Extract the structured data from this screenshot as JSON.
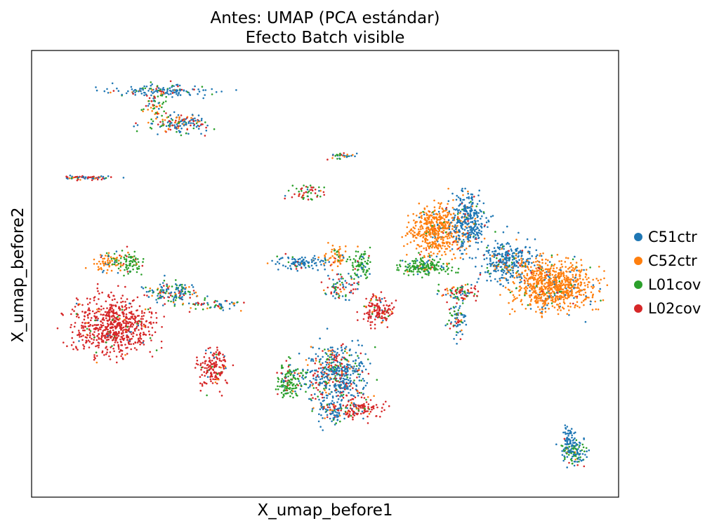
{
  "chart_data": {
    "type": "scatter",
    "title": "Antes: UMAP (PCA estándar)\nEfecto Batch visible",
    "title_lines": [
      "Antes: UMAP (PCA estándar)",
      "Efecto Batch visible"
    ],
    "xlabel": "X_umap_before1",
    "ylabel": "X_umap_before2",
    "xlim": [
      0,
      100
    ],
    "ylim": [
      0,
      100
    ],
    "grid": false,
    "ticks": false,
    "legend_position": "right",
    "series": [
      {
        "name": "C51ctr",
        "color": "#1f77b4"
      },
      {
        "name": "C52ctr",
        "color": "#ff7f0e"
      },
      {
        "name": "L01cov",
        "color": "#2ca02c"
      },
      {
        "name": "L02cov",
        "color": "#d62728"
      }
    ],
    "clusters": [
      {
        "x": 22,
        "y": 91,
        "sx": 7,
        "sy": 1.2,
        "n": 140,
        "mix": [
          0.7,
          0.1,
          0.1,
          0.1
        ]
      },
      {
        "x": 25,
        "y": 84,
        "sx": 4,
        "sy": 1.5,
        "n": 90,
        "mix": [
          0.45,
          0.2,
          0.1,
          0.25
        ]
      },
      {
        "x": 21,
        "y": 88,
        "sx": 1.5,
        "sy": 3,
        "n": 60,
        "mix": [
          0.1,
          0.35,
          0.35,
          0.2
        ]
      },
      {
        "x": 25,
        "y": 83,
        "sx": 5,
        "sy": 1.5,
        "n": 60,
        "mix": [
          0.4,
          0.1,
          0.25,
          0.25
        ]
      },
      {
        "x": 9.5,
        "y": 71.5,
        "sx": 4,
        "sy": 0.4,
        "n": 60,
        "mix": [
          0.3,
          0.1,
          0.15,
          0.45
        ]
      },
      {
        "x": 53,
        "y": 76.5,
        "sx": 2.5,
        "sy": 0.7,
        "n": 30,
        "mix": [
          0.4,
          0.15,
          0.3,
          0.15
        ]
      },
      {
        "x": 47,
        "y": 68,
        "sx": 2.5,
        "sy": 2,
        "n": 55,
        "mix": [
          0.1,
          0.1,
          0.4,
          0.4
        ]
      },
      {
        "x": 13,
        "y": 53,
        "sx": 2,
        "sy": 2,
        "n": 70,
        "mix": [
          0.1,
          0.75,
          0.1,
          0.05
        ]
      },
      {
        "x": 16.5,
        "y": 52.5,
        "sx": 2,
        "sy": 2.2,
        "n": 80,
        "mix": [
          0.05,
          0.1,
          0.8,
          0.05
        ]
      },
      {
        "x": 24,
        "y": 46,
        "sx": 4,
        "sy": 2,
        "n": 140,
        "mix": [
          0.5,
          0.15,
          0.25,
          0.1
        ]
      },
      {
        "x": 31,
        "y": 43,
        "sx": 4,
        "sy": 1.3,
        "n": 60,
        "mix": [
          0.3,
          0.1,
          0.3,
          0.3
        ]
      },
      {
        "x": 14,
        "y": 38.5,
        "sx": 5.5,
        "sy": 5.5,
        "n": 700,
        "mix": [
          0.02,
          0.02,
          0.02,
          0.94
        ]
      },
      {
        "x": 31,
        "y": 29,
        "sx": 2.2,
        "sy": 4,
        "n": 160,
        "mix": [
          0.05,
          0.03,
          0.07,
          0.85
        ]
      },
      {
        "x": 46,
        "y": 52.5,
        "sx": 3.5,
        "sy": 1.3,
        "n": 110,
        "mix": [
          0.9,
          0.03,
          0.04,
          0.03
        ]
      },
      {
        "x": 52,
        "y": 54,
        "sx": 1.5,
        "sy": 2,
        "n": 60,
        "mix": [
          0.1,
          0.7,
          0.1,
          0.1
        ]
      },
      {
        "x": 56,
        "y": 52.5,
        "sx": 1.5,
        "sy": 3,
        "n": 90,
        "mix": [
          0.15,
          0.05,
          0.75,
          0.05
        ]
      },
      {
        "x": 53,
        "y": 47,
        "sx": 2.5,
        "sy": 2.5,
        "n": 80,
        "mix": [
          0.35,
          0.1,
          0.2,
          0.35
        ]
      },
      {
        "x": 59,
        "y": 42,
        "sx": 2.2,
        "sy": 3,
        "n": 140,
        "mix": [
          0.05,
          0.03,
          0.07,
          0.85
        ]
      },
      {
        "x": 52,
        "y": 27.5,
        "sx": 4.5,
        "sy": 5.5,
        "n": 520,
        "mix": [
          0.6,
          0.08,
          0.12,
          0.2
        ]
      },
      {
        "x": 44,
        "y": 26,
        "sx": 2,
        "sy": 3.5,
        "n": 140,
        "mix": [
          0.1,
          0.04,
          0.76,
          0.1
        ]
      },
      {
        "x": 56,
        "y": 20,
        "sx": 3.5,
        "sy": 2,
        "n": 110,
        "mix": [
          0.05,
          0.03,
          0.07,
          0.85
        ]
      },
      {
        "x": 51,
        "y": 19,
        "sx": 2.5,
        "sy": 2.5,
        "n": 90,
        "mix": [
          0.7,
          0.05,
          0.1,
          0.15
        ]
      },
      {
        "x": 69,
        "y": 60,
        "sx": 4,
        "sy": 4.5,
        "n": 520,
        "mix": [
          0.04,
          0.9,
          0.03,
          0.03
        ]
      },
      {
        "x": 74.5,
        "y": 62,
        "sx": 2.5,
        "sy": 5.5,
        "n": 320,
        "mix": [
          0.9,
          0.05,
          0.03,
          0.02
        ]
      },
      {
        "x": 67,
        "y": 51.5,
        "sx": 4,
        "sy": 1.5,
        "n": 170,
        "mix": [
          0.1,
          0.05,
          0.8,
          0.05
        ]
      },
      {
        "x": 81,
        "y": 53,
        "sx": 4,
        "sy": 4,
        "n": 320,
        "mix": [
          0.8,
          0.1,
          0.05,
          0.05
        ]
      },
      {
        "x": 89,
        "y": 47.5,
        "sx": 6,
        "sy": 4.5,
        "n": 800,
        "mix": [
          0.06,
          0.9,
          0.02,
          0.02
        ]
      },
      {
        "x": 73,
        "y": 46,
        "sx": 3,
        "sy": 1.5,
        "n": 90,
        "mix": [
          0.25,
          0.1,
          0.25,
          0.4
        ]
      },
      {
        "x": 72.5,
        "y": 40,
        "sx": 1.3,
        "sy": 3,
        "n": 70,
        "mix": [
          0.5,
          0.1,
          0.25,
          0.15
        ]
      },
      {
        "x": 92.5,
        "y": 10,
        "sx": 2,
        "sy": 2.5,
        "n": 130,
        "mix": [
          0.55,
          0.02,
          0.4,
          0.03
        ]
      },
      {
        "x": 91.5,
        "y": 13.5,
        "sx": 0.8,
        "sy": 2.5,
        "n": 50,
        "mix": [
          0.9,
          0.02,
          0.05,
          0.03
        ]
      }
    ]
  }
}
